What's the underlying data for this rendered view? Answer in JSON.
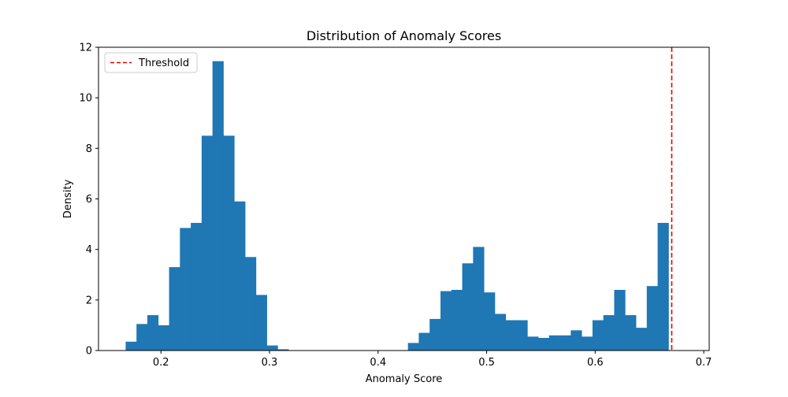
{
  "chart_data": {
    "type": "bar",
    "title": "Distribution of Anomaly Scores",
    "xlabel": "Anomaly Score",
    "ylabel": "Density",
    "xlim": [
      0.1425,
      0.705
    ],
    "ylim": [
      0,
      12
    ],
    "x_ticks": [
      0.2,
      0.3,
      0.4,
      0.5,
      0.6,
      0.7
    ],
    "x_tick_labels": [
      "0.2",
      "0.3",
      "0.4",
      "0.5",
      "0.6",
      "0.7"
    ],
    "y_ticks": [
      0,
      2,
      4,
      6,
      8,
      10,
      12
    ],
    "y_tick_labels": [
      "0",
      "2",
      "4",
      "6",
      "8",
      "10",
      "12"
    ],
    "bin_start": 0.1675,
    "bin_width": 0.01,
    "values": [
      0.35,
      1.05,
      1.4,
      1.0,
      3.3,
      4.85,
      5.05,
      8.5,
      11.45,
      8.5,
      5.9,
      3.7,
      2.2,
      0.2,
      0.05,
      0,
      0,
      0,
      0,
      0,
      0,
      0,
      0,
      0,
      0,
      0,
      0.3,
      0.7,
      1.25,
      2.35,
      2.4,
      3.45,
      4.1,
      2.3,
      1.45,
      1.2,
      1.2,
      0.55,
      0.5,
      0.6,
      0.6,
      0.8,
      0.55,
      1.2,
      1.4,
      2.4,
      1.4,
      0.9,
      2.55,
      5.05
    ],
    "bar_color": "#1f77b4",
    "threshold": {
      "value": 0.6705,
      "label": "Threshold",
      "color": "#e00000",
      "style": "dashed"
    },
    "legend": {
      "position": "upper-left",
      "entries": [
        "Threshold"
      ]
    },
    "grid": false
  }
}
